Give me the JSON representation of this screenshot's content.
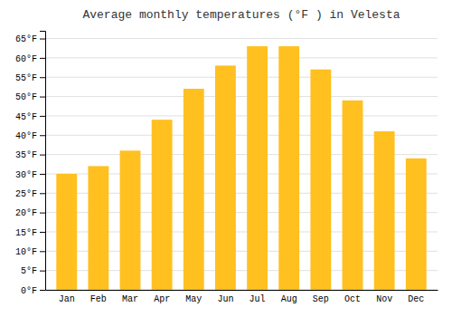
{
  "chart_data": {
    "type": "bar",
    "title": "Average monthly temperatures (°F ) in Velesta",
    "categories": [
      "Jan",
      "Feb",
      "Mar",
      "Apr",
      "May",
      "Jun",
      "Jul",
      "Aug",
      "Sep",
      "Oct",
      "Nov",
      "Dec"
    ],
    "values": [
      30,
      32,
      36,
      44,
      52,
      58,
      63,
      63,
      57,
      49,
      41,
      34
    ],
    "color": "#FFC020",
    "ylim": [
      0,
      67
    ],
    "yticks": [
      {
        "value": 0,
        "label": "0°F"
      },
      {
        "value": 5,
        "label": "5°F"
      },
      {
        "value": 10,
        "label": "10°F"
      },
      {
        "value": 15,
        "label": "15°F"
      },
      {
        "value": 20,
        "label": "20°F"
      },
      {
        "value": 25,
        "label": "25°F"
      },
      {
        "value": 30,
        "label": "30°F"
      },
      {
        "value": 35,
        "label": "35°F"
      },
      {
        "value": 40,
        "label": "40°F"
      },
      {
        "value": 45,
        "label": "45°F"
      },
      {
        "value": 50,
        "label": "50°F"
      },
      {
        "value": 55,
        "label": "55°F"
      },
      {
        "value": 60,
        "label": "60°F"
      },
      {
        "value": 65,
        "label": "65°F"
      }
    ],
    "grid": true
  }
}
